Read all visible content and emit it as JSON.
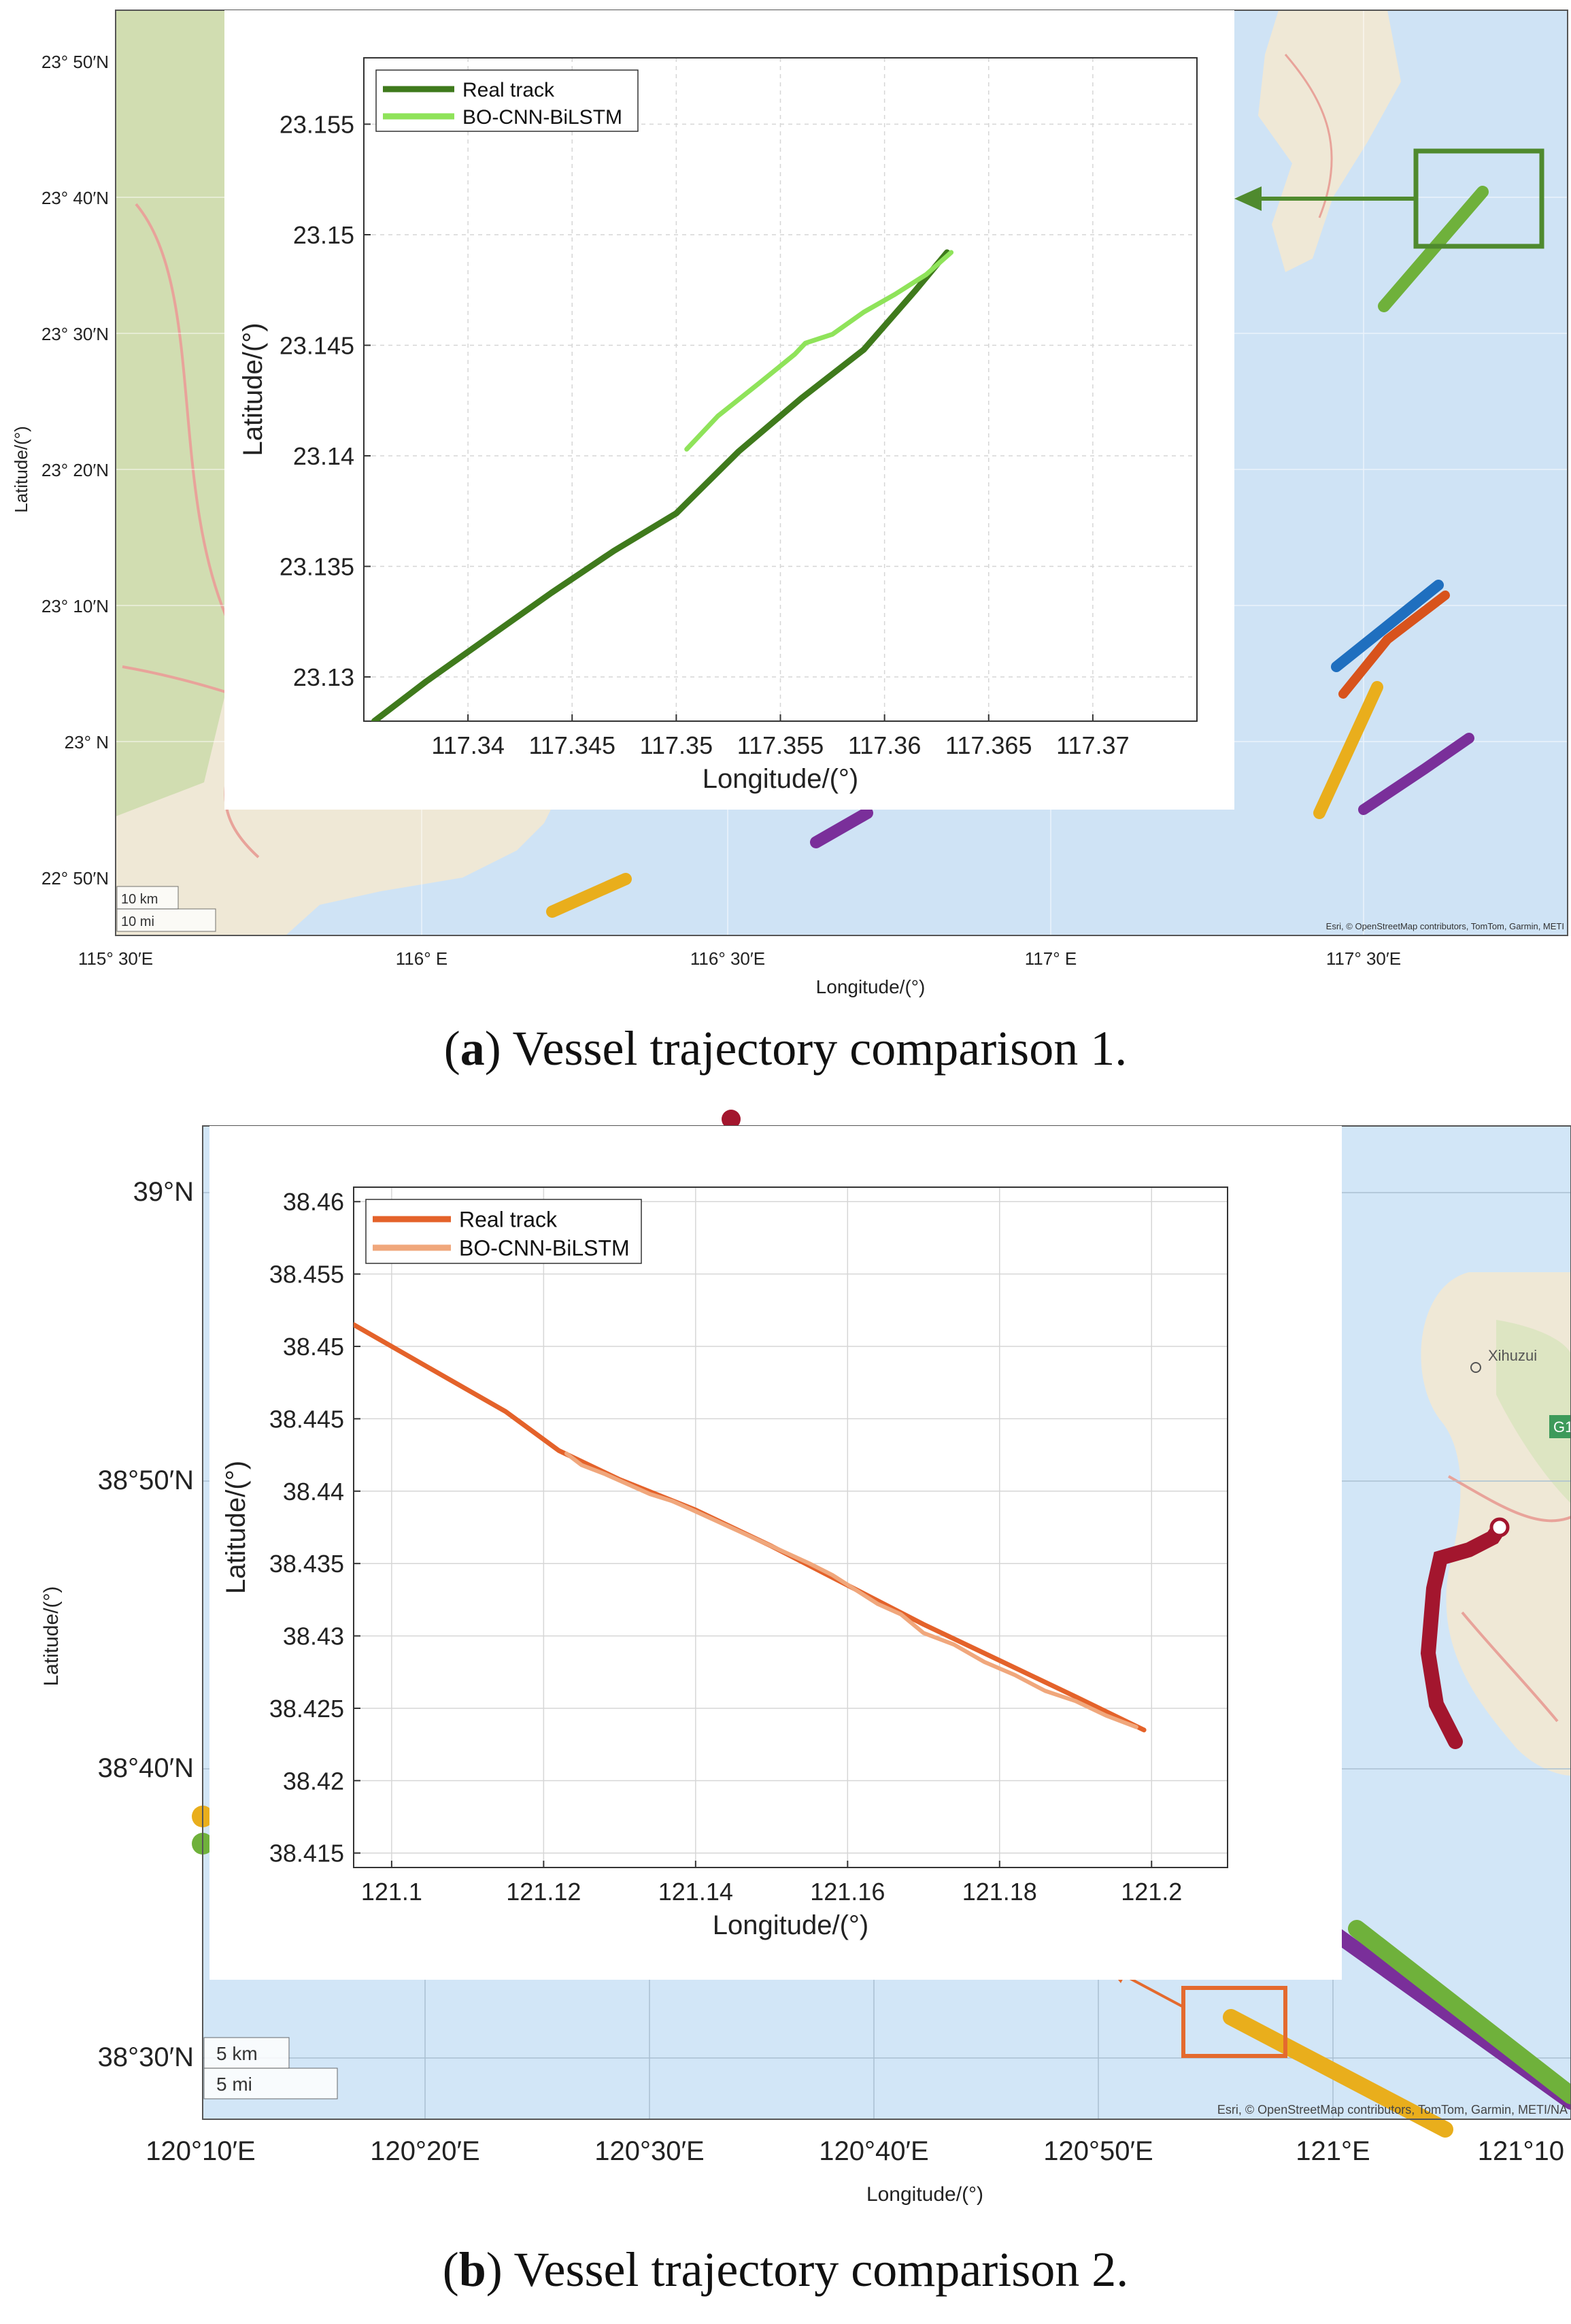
{
  "figure_a": {
    "caption_label": "a",
    "caption_text": "Vessel trajectory comparison 1.",
    "map": {
      "lat_labels": [
        "23° 50′N",
        "23° 40′N",
        "23° 30′N",
        "23° 20′N",
        "23° 10′N",
        "23° N",
        "22° 50′N"
      ],
      "lon_labels": [
        "115° 30′E",
        "116° E",
        "116° 30′E",
        "117° E",
        "117° 30′E"
      ],
      "ylabel": "Latitude/(°)",
      "xlabel": "Longitude/(°)",
      "scale_km": "10 km",
      "scale_mi": "10 mi",
      "attribution": "Esri, © OpenStreetMap contributors, TomTom, Garmin, METI",
      "colors": {
        "sea": "#cfe3f5",
        "land": "#efe8d6",
        "land_green": "#c9d9a8",
        "box": "#4f8a2e"
      }
    }
  },
  "figure_b": {
    "caption_label": "b",
    "caption_text": "Vessel trajectory comparison 2.",
    "map": {
      "lat_labels": [
        "39°N",
        "38°50′N",
        "38°40′N",
        "38°30′N"
      ],
      "lon_labels": [
        "120°10′E",
        "120°20′E",
        "120°30′E",
        "120°40′E",
        "120°50′E",
        "121°E",
        "121°10"
      ],
      "ylabel": "Latitude/(°)",
      "xlabel": "Longitude/(°)",
      "scale_km": "5 km",
      "scale_mi": "5 mi",
      "place": "Xihuzui",
      "road_badge": "G1",
      "attribution": "Esri, © OpenStreetMap contributors, TomTom, Garmin, METI/NA",
      "colors": {
        "sea": "#d2e6f7",
        "land": "#efe8d6",
        "box": "#e46a2e"
      }
    }
  },
  "chart_data": [
    {
      "type": "line",
      "xlabel": "Longitude/(°)",
      "ylabel": "Latitude/(°)",
      "xlim": [
        117.335,
        117.375
      ],
      "ylim": [
        23.128,
        23.158
      ],
      "xticks": [
        117.34,
        117.345,
        117.35,
        117.355,
        117.36,
        117.365,
        117.37
      ],
      "yticks": [
        23.13,
        23.135,
        23.14,
        23.145,
        23.15,
        23.155
      ],
      "grid": true,
      "legend": "top-left",
      "series": [
        {
          "name": "Real track",
          "color": "#3f7a1c",
          "x": [
            117.3355,
            117.338,
            117.341,
            117.344,
            117.347,
            117.35,
            117.353,
            117.356,
            117.359,
            117.3615,
            117.363
          ],
          "y": [
            23.128,
            23.1298,
            23.1318,
            23.1338,
            23.1357,
            23.1374,
            23.1402,
            23.1426,
            23.1448,
            23.1475,
            23.1492
          ]
        },
        {
          "name": "BO-CNN-BiLSTM",
          "color": "#8fe35a",
          "x": [
            117.3505,
            117.352,
            117.354,
            117.3557,
            117.3562,
            117.3575,
            117.359,
            117.3605,
            117.362,
            117.3632
          ],
          "y": [
            23.1403,
            23.1418,
            23.1433,
            23.1446,
            23.1451,
            23.1455,
            23.1465,
            23.1473,
            23.1482,
            23.1492
          ]
        }
      ]
    },
    {
      "type": "line",
      "xlabel": "Longitude/(°)",
      "ylabel": "Latitude/(°)",
      "xlim": [
        121.095,
        121.21
      ],
      "ylim": [
        38.414,
        38.461
      ],
      "xticks": [
        121.1,
        121.12,
        121.14,
        121.16,
        121.18,
        121.2
      ],
      "yticks": [
        38.415,
        38.42,
        38.425,
        38.43,
        38.435,
        38.44,
        38.445,
        38.45,
        38.455,
        38.46
      ],
      "grid": true,
      "legend": "top-left",
      "series": [
        {
          "name": "Real track",
          "color": "#e4622a",
          "x": [
            121.095,
            121.105,
            121.115,
            121.122,
            121.13,
            121.14,
            121.15,
            121.16,
            121.17,
            121.18,
            121.19,
            121.199
          ],
          "y": [
            38.4515,
            38.4485,
            38.4455,
            38.4428,
            38.4408,
            38.4387,
            38.4362,
            38.4335,
            38.4308,
            38.4283,
            38.4258,
            38.4235
          ]
        },
        {
          "name": "BO-CNN-BiLSTM",
          "color": "#f0a77c",
          "x": [
            121.123,
            121.125,
            121.128,
            121.131,
            121.134,
            121.137,
            121.14,
            121.145,
            121.15,
            121.155,
            121.158,
            121.161,
            121.164,
            121.167,
            121.17,
            121.174,
            121.178,
            121.182,
            121.186,
            121.19,
            121.194,
            121.198
          ],
          "y": [
            38.4426,
            38.4418,
            38.4412,
            38.4405,
            38.4398,
            38.4393,
            38.4386,
            38.4374,
            38.4362,
            38.435,
            38.4342,
            38.4332,
            38.4322,
            38.4315,
            38.4302,
            38.4294,
            38.4282,
            38.4273,
            38.4262,
            38.4255,
            38.4245,
            38.4237
          ]
        }
      ]
    }
  ]
}
